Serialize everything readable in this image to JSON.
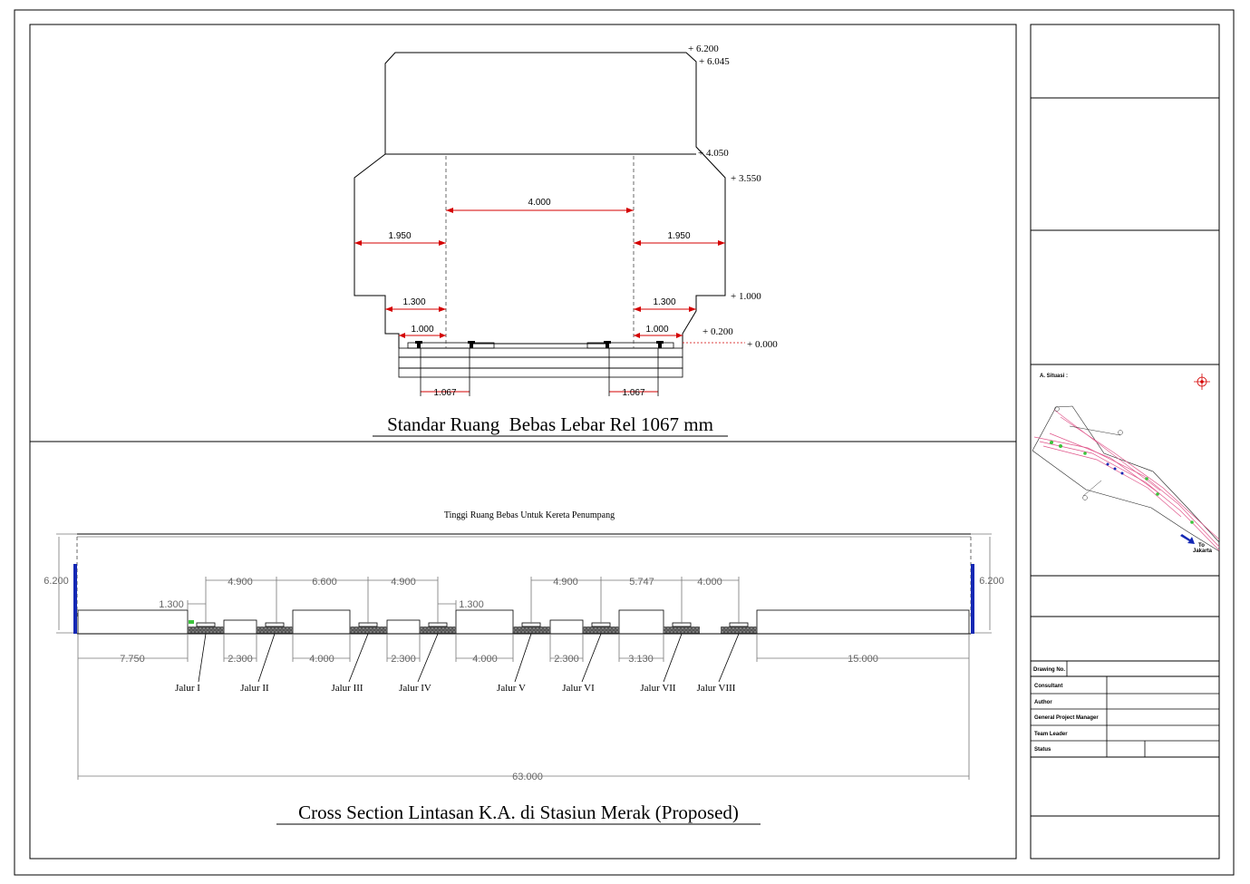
{
  "top_drawing": {
    "title": "Standar Ruang  Bebas Lebar Rel 1067 mm",
    "elevations": [
      "+ 6.200",
      "+ 6.045",
      "+ 4.050",
      "+ 3.550",
      "+ 1.000",
      "+ 0.200",
      "+ 0.000"
    ],
    "dimensions": {
      "center_width": "4.000",
      "left_upper": "1.950",
      "right_upper": "1.950",
      "left_mid": "1.300",
      "right_mid": "1.300",
      "left_low": "1.000",
      "right_low": "1.000",
      "gauge_left": "1.067",
      "gauge_right": "1.067"
    }
  },
  "bottom_drawing": {
    "title": "Cross Section Lintasan K.A. di Stasiun Merak (Proposed)",
    "subtitle": "Tinggi Ruang Bebas Untuk Kereta Penumpang",
    "height_left": "6.200",
    "height_right": "6.200",
    "top_dims": [
      "1.300",
      "4.900",
      "6.600",
      "4.900",
      "1.300",
      "4.900",
      "5.747",
      "4.000"
    ],
    "bottom_dims": [
      "7.750",
      "2.300",
      "4.000",
      "2.300",
      "4.000",
      "2.300",
      "3.130",
      "15.000"
    ],
    "total": "63.000",
    "tracks": [
      "Jalur I",
      "Jalur II",
      "Jalur III",
      "Jalur IV",
      "Jalur V",
      "Jalur VI",
      "Jalur VII",
      "Jalur VIII"
    ]
  },
  "title_block": {
    "situasi_label": "A. Situasi :",
    "direction_label_1": "To",
    "direction_label_2": "Jakarta",
    "drawing_no": "Drawing No.",
    "rows": [
      "Consultant",
      "Author",
      "General Project Manager",
      "Team Leader",
      "Status"
    ]
  },
  "colors": {
    "dimension_red": "#d40000",
    "marker_blue": "#1428b4",
    "map_pink": "#e0558a",
    "map_green": "#3cc43c"
  }
}
